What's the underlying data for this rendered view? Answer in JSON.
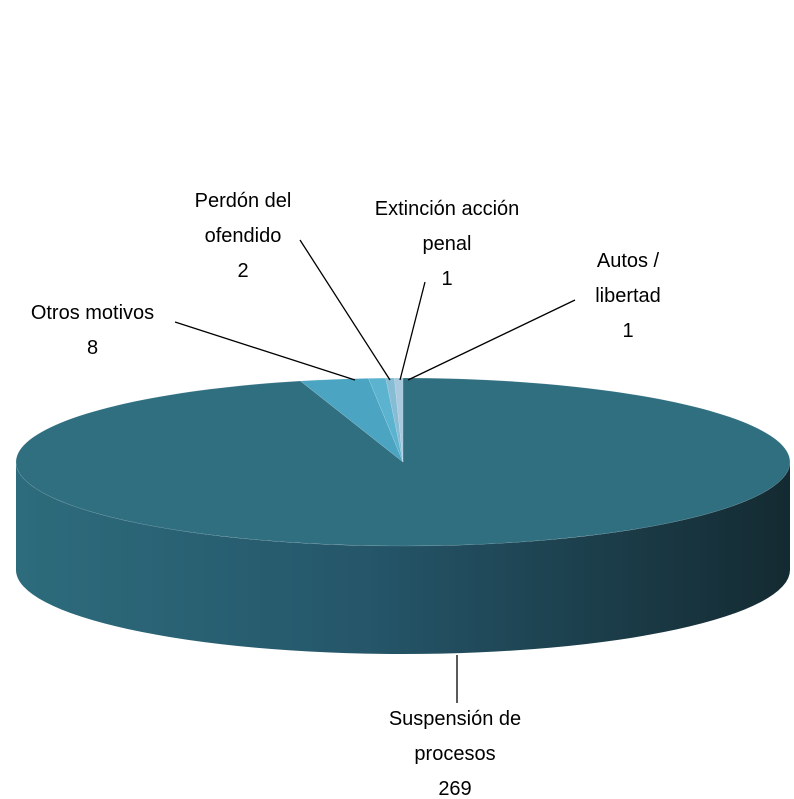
{
  "chart_data": {
    "type": "pie",
    "categories": [
      "Suspensión de procesos",
      "Otros motivos",
      "Perdón del ofendido",
      "Extinción acción penal",
      "Autos / libertad"
    ],
    "values": [
      269,
      8,
      2,
      1,
      1
    ],
    "colors": [
      "#2f6f80",
      "#4aa4c2",
      "#5cb3cf",
      "#86bcd4",
      "#a8c9de"
    ]
  }
}
